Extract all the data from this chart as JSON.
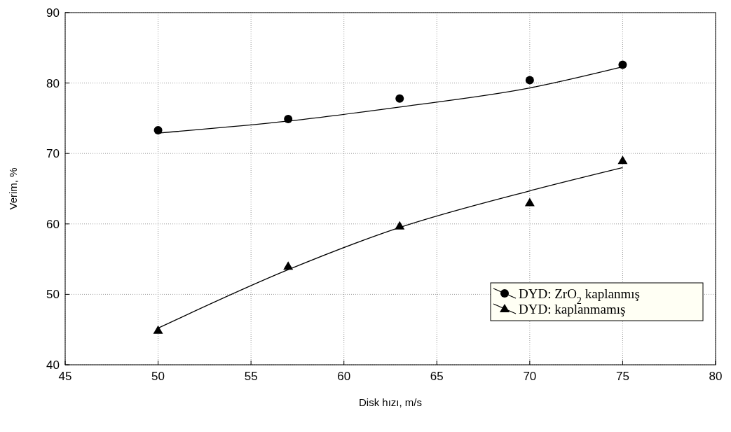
{
  "chart_data": {
    "type": "scatter",
    "xlabel": "Disk hızı, m/s",
    "ylabel": "Verim, %",
    "xlim": [
      45,
      80
    ],
    "xticks": [
      45,
      50,
      55,
      60,
      65,
      70,
      75,
      80
    ],
    "ylim": [
      40,
      90
    ],
    "yticks": [
      40,
      50,
      60,
      70,
      80,
      90
    ],
    "grid": true,
    "legend": "bottom right",
    "series": [
      {
        "name": "DYD: ZrO$_{2}$ kaplanmış",
        "marker": "circle",
        "color": "#000000",
        "x": [
          50,
          57,
          63,
          70,
          75
        ],
        "values": [
          73.3,
          74.9,
          77.8,
          80.4,
          82.6
        ]
      },
      {
        "name": "DYD: kaplanmamış",
        "marker": "triangle",
        "color": "#000000",
        "x": [
          50,
          57,
          63,
          70,
          75
        ],
        "values": [
          44.9,
          54,
          59.7,
          63,
          69
        ]
      },
      {
        "type": "line",
        "color": "#000000",
        "x": [
          50,
          57,
          63,
          70,
          75
        ],
        "values": [
          72.9,
          74.6,
          76.6,
          79.3,
          82.3
        ]
      },
      {
        "type": "line",
        "color": "#000000",
        "x": [
          50,
          57,
          63,
          70,
          75
        ],
        "values": [
          45.2,
          53.5,
          59.5,
          64.7,
          68
        ]
      }
    ]
  }
}
